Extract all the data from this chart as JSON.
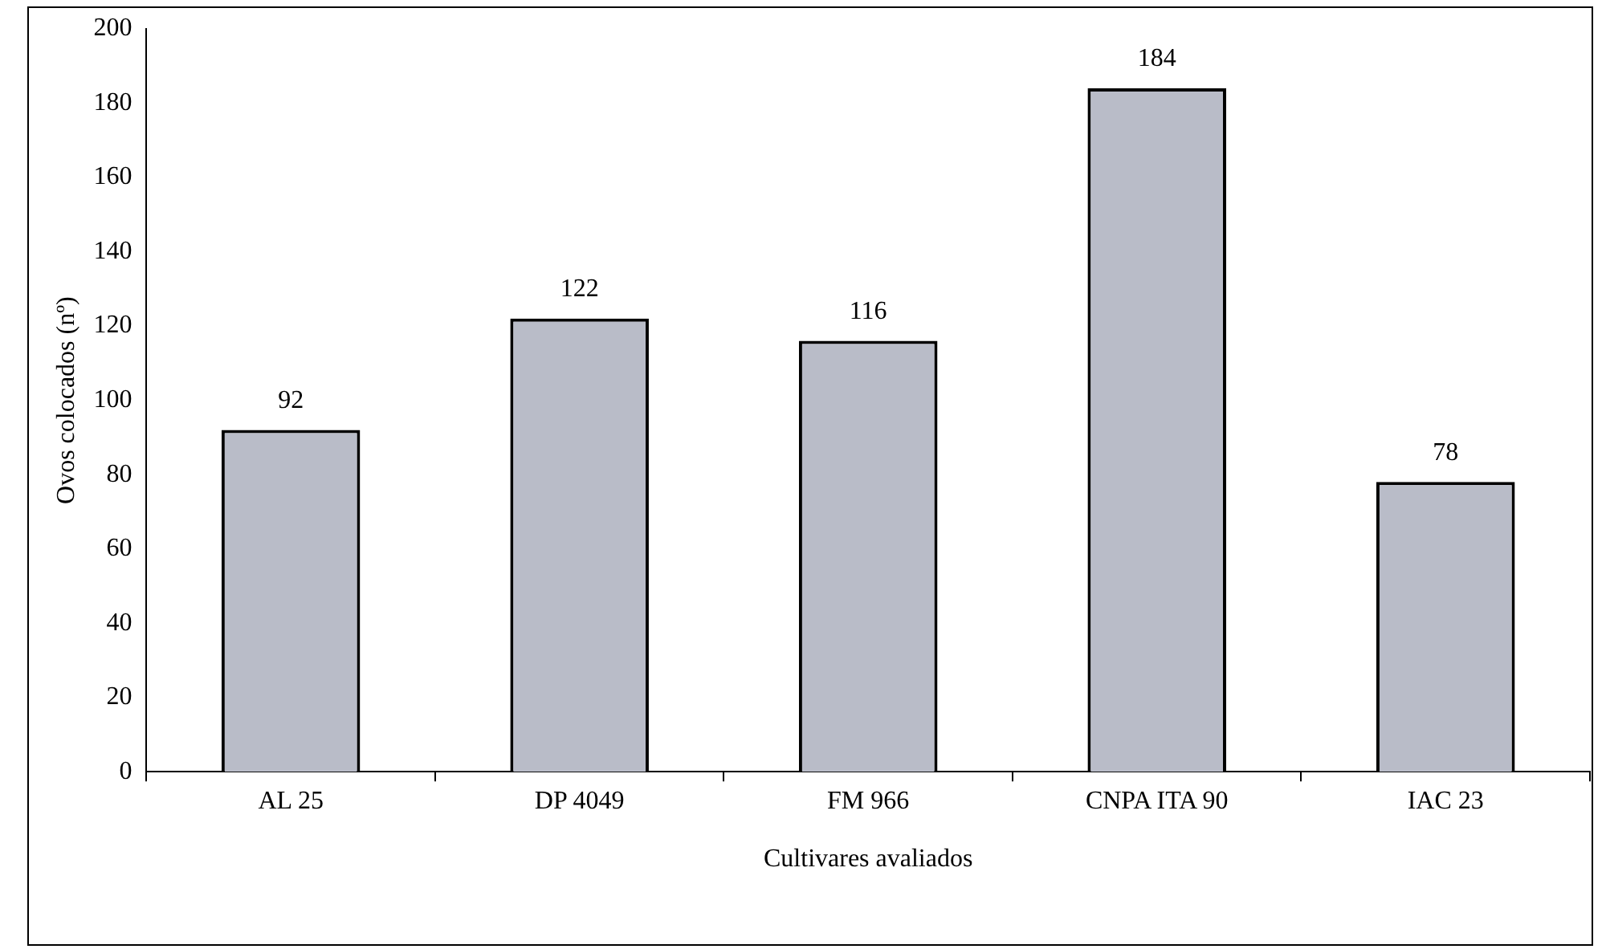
{
  "chart_data": {
    "type": "bar",
    "xlabel": "Cultivares avaliados",
    "ylabel": "Ovos colocados (nº)",
    "categories": [
      "AL 25",
      "DP 4049",
      "FM 966",
      "CNPA ITA 90",
      "IAC 23"
    ],
    "values": [
      92,
      122,
      116,
      184,
      78
    ],
    "color": "#b9bcc8",
    "ylim": [
      0,
      200
    ],
    "yticks": [
      0,
      20,
      40,
      60,
      80,
      100,
      120,
      140,
      160,
      180,
      200
    ],
    "grid": false,
    "legend": false,
    "data_labels": true
  }
}
